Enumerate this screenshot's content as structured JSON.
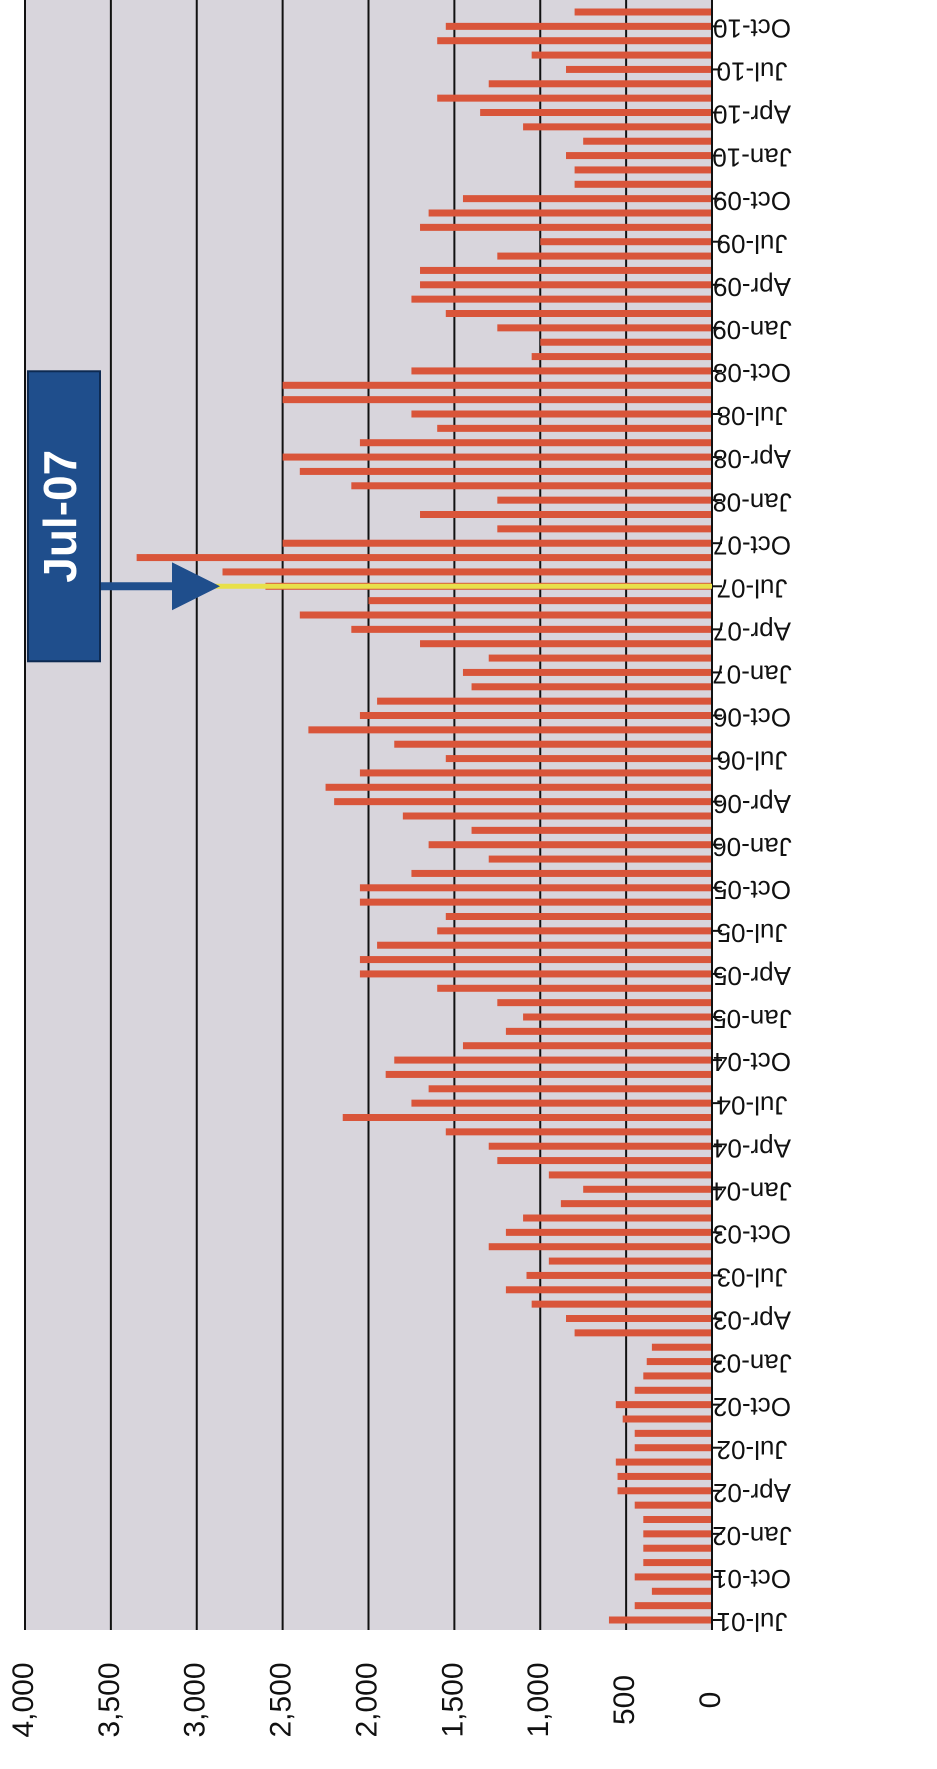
{
  "chart_data": {
    "type": "bar",
    "orientation": "rotated",
    "categories": [
      "Jul-01",
      null,
      null,
      "Oct-01",
      null,
      null,
      "Jan-02",
      null,
      null,
      "Apr-02",
      null,
      null,
      "Jul-02",
      null,
      null,
      "Oct-02",
      null,
      null,
      "Jan-03",
      null,
      null,
      "Apr-03",
      null,
      null,
      "Jul-03",
      null,
      null,
      "Oct-03",
      null,
      null,
      "Jan-04",
      null,
      null,
      "Apr-04",
      null,
      null,
      "Jul-04",
      null,
      null,
      "Oct-04",
      null,
      null,
      "Jan-05",
      null,
      null,
      "Apr-05",
      null,
      null,
      "Jul-05",
      null,
      null,
      "Oct-05",
      null,
      null,
      "Jan-06",
      null,
      null,
      "Apr-06",
      null,
      null,
      "Jul-06",
      null,
      null,
      "Oct-06",
      null,
      null,
      "Jan-07",
      null,
      null,
      "Apr-07",
      null,
      null,
      "Jul-07",
      null,
      null,
      "Oct-07",
      null,
      null,
      "Jan-08",
      null,
      null,
      "Apr-08",
      null,
      null,
      "Jul-08",
      null,
      null,
      "Oct-08",
      null,
      null,
      "Jan-09",
      null,
      null,
      "Apr-09",
      null,
      null,
      "Jul-09",
      null,
      null,
      "Oct-09",
      null,
      null,
      "Jan-10",
      null,
      null,
      "Apr-10",
      null,
      null,
      "Jul-10",
      null,
      null,
      "Oct-10",
      null
    ],
    "values": [
      600,
      450,
      350,
      450,
      400,
      400,
      400,
      400,
      450,
      550,
      550,
      560,
      450,
      450,
      520,
      560,
      450,
      400,
      380,
      350,
      800,
      850,
      1050,
      1200,
      1080,
      950,
      1300,
      1200,
      1100,
      880,
      750,
      950,
      1250,
      1300,
      1550,
      2150,
      1750,
      1650,
      1900,
      1850,
      1450,
      1200,
      1100,
      1250,
      1600,
      2050,
      2050,
      1950,
      1600,
      1550,
      2050,
      2050,
      1750,
      1300,
      1650,
      1400,
      1800,
      2200,
      2250,
      2050,
      1550,
      1850,
      2350,
      2050,
      1950,
      1400,
      1450,
      1300,
      1700,
      2100,
      2400,
      2000,
      2600,
      2850,
      3350,
      2500,
      1250,
      1700,
      1250,
      2100,
      2400,
      2500,
      2050,
      1600,
      1750,
      2500,
      2500,
      1750,
      1050,
      1000,
      1250,
      1550,
      1750,
      1700,
      1700,
      1250,
      1000,
      1700,
      1650,
      1450,
      800,
      800,
      850,
      750,
      1100,
      1350,
      1600,
      1300,
      850,
      1050,
      1600,
      1550,
      800
    ],
    "color": "#d9553a",
    "ylim": [
      0,
      4000
    ],
    "yticks": [
      0,
      500,
      {
        "value": 1000,
        "label": "1,000"
      },
      {
        "value": 1500,
        "label": "1,500"
      },
      {
        "value": 2000,
        "label": "2,000"
      },
      {
        "value": 2500,
        "label": "2,500"
      },
      {
        "value": 3000,
        "label": "3,000"
      },
      {
        "value": 3500,
        "label": "3,500"
      },
      {
        "value": 4000,
        "label": "4,000"
      }
    ],
    "grid": true,
    "annotation": {
      "text": "Jul-07",
      "color": "#1f4e8c",
      "highlight_color": "#e8e04a"
    }
  }
}
